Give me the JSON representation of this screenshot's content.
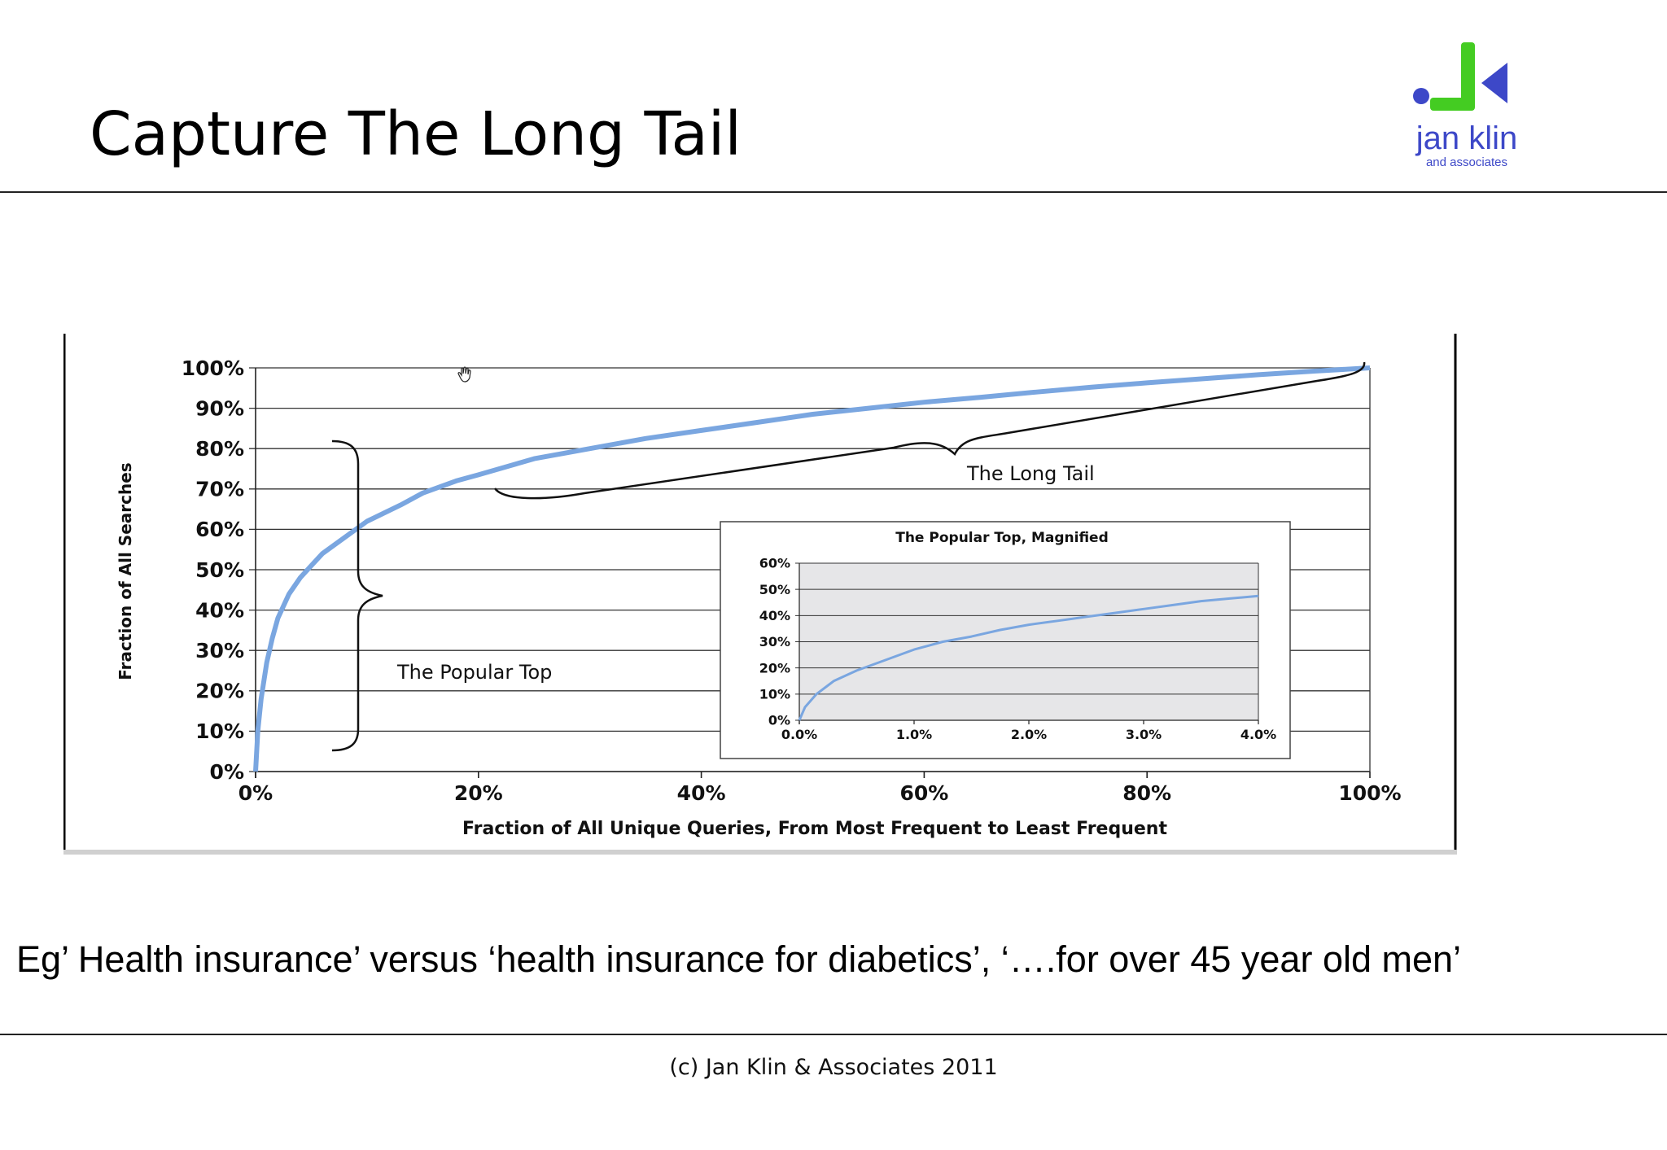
{
  "slide": {
    "title": "Capture The Long Tail",
    "caption": "Eg’ Health insurance’  versus ‘health insurance for diabetics’, ‘….for over 45 year old men’",
    "footer": "(c) Jan Klin & Associates 2011"
  },
  "logo": {
    "name": "jan klin",
    "tagline": "and associates",
    "colors": {
      "green": "#44cc22",
      "blue": "#3d48c8"
    }
  },
  "chart_data": [
    {
      "type": "line",
      "xlabel": "Fraction of All Unique Queries, From Most Frequent to Least Frequent",
      "ylabel": "Fraction of All Searches",
      "xlim": [
        0,
        100
      ],
      "ylim": [
        0,
        100
      ],
      "x_ticks": [
        "0%",
        "20%",
        "40%",
        "60%",
        "80%",
        "100%"
      ],
      "y_ticks": [
        "0%",
        "10%",
        "20%",
        "30%",
        "40%",
        "50%",
        "60%",
        "70%",
        "80%",
        "90%",
        "100%"
      ],
      "grid": true,
      "line_color": "#7aa6e0",
      "series": [
        {
          "x": [
            0,
            0.2,
            0.5,
            1,
            1.5,
            2,
            3,
            4,
            5,
            6,
            8,
            10,
            13,
            15,
            18,
            20,
            25,
            30,
            35,
            40,
            45,
            50,
            55,
            60,
            65,
            70,
            75,
            80,
            85,
            90,
            95,
            100
          ],
          "y": [
            0,
            10,
            18,
            27,
            33,
            38,
            44,
            48,
            51,
            54,
            58,
            62,
            66,
            69,
            72,
            73.5,
            77.5,
            80,
            82.5,
            84.5,
            86.5,
            88.5,
            90,
            91.5,
            92.7,
            94,
            95.2,
            96.3,
            97.3,
            98.3,
            99.2,
            100
          ]
        }
      ],
      "annotations": [
        {
          "text": "The Long Tail"
        },
        {
          "text": "The Popular Top"
        }
      ]
    },
    {
      "type": "line",
      "title": "The Popular Top, Magnified",
      "xlim": [
        0,
        4
      ],
      "ylim": [
        0,
        60
      ],
      "x_ticks": [
        "0.0%",
        "1.0%",
        "2.0%",
        "3.0%",
        "4.0%"
      ],
      "y_ticks": [
        "0%",
        "10%",
        "20%",
        "30%",
        "40%",
        "50%",
        "60%"
      ],
      "grid": true,
      "series": [
        {
          "x": [
            0,
            0.05,
            0.15,
            0.3,
            0.5,
            0.75,
            1.0,
            1.25,
            1.5,
            1.75,
            2.0,
            2.25,
            2.5,
            2.75,
            3.0,
            3.25,
            3.5,
            3.75,
            4.0
          ],
          "y": [
            0,
            5,
            10,
            15,
            19,
            23,
            27,
            30,
            32,
            34.5,
            36.5,
            38,
            39.5,
            41,
            42.5,
            44,
            45.5,
            46.5,
            47.5
          ]
        }
      ]
    }
  ]
}
